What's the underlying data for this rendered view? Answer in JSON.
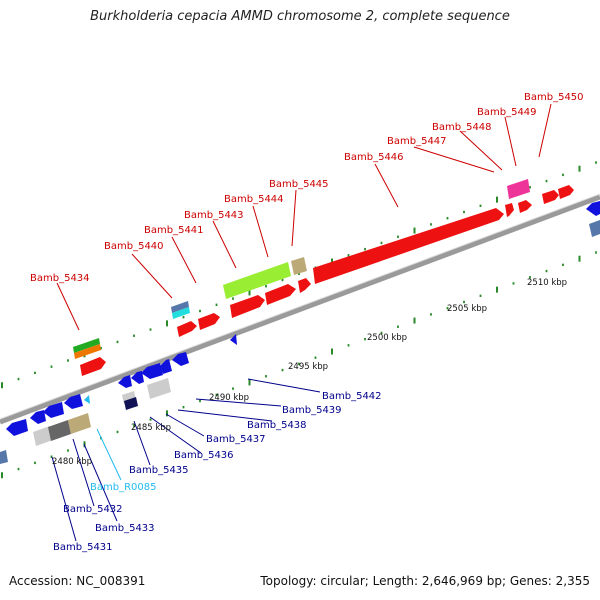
{
  "title": "Burkholderia cepacia AMMD chromosome 2, complete sequence",
  "footer": {
    "accession_label": "Accession: NC_008391",
    "topology_label": "Topology: circular; Length: 2,646,969 bp; Genes: 2,355"
  },
  "colors": {
    "forward_gene": "#ee1111",
    "reverse_gene": "#1111dd",
    "backbone": "#8c8c8c",
    "tick": "#2a8a2a",
    "label_forward": "#cc0000",
    "label_reverse": "#00008b",
    "label_rna": "#22bbee"
  },
  "kbp_labels": [
    "2480 kbp",
    "2485 kbp",
    "2490 kbp",
    "2495 kbp",
    "2500 kbp",
    "2505 kbp",
    "2510 kbp"
  ],
  "forward_labels": [
    "Bamb_5434",
    "Bamb_5440",
    "Bamb_5441",
    "Bamb_5443",
    "Bamb_5444",
    "Bamb_5445",
    "Bamb_5446",
    "Bamb_5447",
    "Bamb_5448",
    "Bamb_5449",
    "Bamb_5450"
  ],
  "reverse_labels": [
    "Bamb_5442",
    "Bamb_5439",
    "Bamb_5438",
    "Bamb_5437",
    "Bamb_5436",
    "Bamb_5435",
    "Bamb_R0085",
    "Bamb_5432",
    "Bamb_5433",
    "Bamb_5431"
  ]
}
